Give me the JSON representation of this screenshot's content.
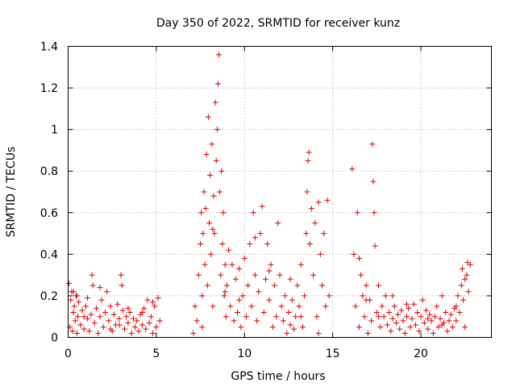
{
  "chart_data": {
    "type": "scatter",
    "title": "Day 350 of 2022, SRMTID for receiver kunz",
    "xlabel": "GPS time / hours",
    "ylabel": "SRMTID / TECUs",
    "xlim": [
      0,
      24
    ],
    "ylim": [
      0,
      1.4
    ],
    "x_ticks": [
      0,
      5,
      10,
      15,
      20
    ],
    "x_tick_labels": [
      "0",
      "5",
      "10",
      "15",
      "20"
    ],
    "y_ticks": [
      0,
      0.2,
      0.4,
      0.6,
      0.8,
      1,
      1.2,
      1.4
    ],
    "y_tick_labels": [
      "0",
      "0.2",
      "0.4",
      "0.6",
      "0.8",
      "1",
      "1.2",
      "1.4"
    ],
    "grid": true,
    "marker": "plus",
    "marker_color": "#e00000",
    "series": [
      {
        "name": "SRMTID",
        "points": [
          [
            0.05,
            0.26
          ],
          [
            0.1,
            0.05
          ],
          [
            0.15,
            0.18
          ],
          [
            0.2,
            0.22
          ],
          [
            0.25,
            0.03
          ],
          [
            0.3,
            0.12
          ],
          [
            0.35,
            0.15
          ],
          [
            0.4,
            0.08
          ],
          [
            0.45,
            0.2
          ],
          [
            0.5,
            0.02
          ],
          [
            0.55,
            0.1
          ],
          [
            0.6,
            0.17
          ],
          [
            0.7,
            0.06
          ],
          [
            0.8,
            0.13
          ],
          [
            0.9,
            0.04
          ],
          [
            1.0,
            0.15
          ],
          [
            1.1,
            0.09
          ],
          [
            1.2,
            0.03
          ],
          [
            1.3,
            0.11
          ],
          [
            1.35,
            0.3
          ],
          [
            1.4,
            0.25
          ],
          [
            1.5,
            0.07
          ],
          [
            1.6,
            0.14
          ],
          [
            1.7,
            0.02
          ],
          [
            1.8,
            0.1
          ],
          [
            1.9,
            0.18
          ],
          [
            2.0,
            0.05
          ],
          [
            2.1,
            0.12
          ],
          [
            2.2,
            0.22
          ],
          [
            2.3,
            0.08
          ],
          [
            2.4,
            0.15
          ],
          [
            2.5,
            0.03
          ],
          [
            2.6,
            0.11
          ],
          [
            2.7,
            0.06
          ],
          [
            2.8,
            0.16
          ],
          [
            2.9,
            0.09
          ],
          [
            3.0,
            0.3
          ],
          [
            3.05,
            0.25
          ],
          [
            3.1,
            0.13
          ],
          [
            3.2,
            0.04
          ],
          [
            3.3,
            0.1
          ],
          [
            3.4,
            0.07
          ],
          [
            3.5,
            0.12
          ],
          [
            3.6,
            0.02
          ],
          [
            3.7,
            0.09
          ],
          [
            3.8,
            0.05
          ],
          [
            3.9,
            0.08
          ],
          [
            4.0,
            0.03
          ],
          [
            4.1,
            0.11
          ],
          [
            4.2,
            0.06
          ],
          [
            4.3,
            0.14
          ],
          [
            4.4,
            0.04
          ],
          [
            4.5,
            0.18
          ],
          [
            4.6,
            0.07
          ],
          [
            4.7,
            0.1
          ],
          [
            4.8,
            0.02
          ],
          [
            4.9,
            0.15
          ],
          [
            5.0,
            0.05
          ],
          [
            5.1,
            0.19
          ],
          [
            5.2,
            0.08
          ],
          [
            0.5,
            0.2
          ],
          [
            0.9,
            0.1
          ],
          [
            1.8,
            0.24
          ],
          [
            2.4,
            0.04
          ],
          [
            3.4,
            0.14
          ],
          [
            4.2,
            0.12
          ],
          [
            4.8,
            0.17
          ],
          [
            2.9,
            0.06
          ],
          [
            0.3,
            0.22
          ],
          [
            1.1,
            0.19
          ],
          [
            7.1,
            0.02
          ],
          [
            7.2,
            0.15
          ],
          [
            7.3,
            0.08
          ],
          [
            7.4,
            0.3
          ],
          [
            7.5,
            0.45
          ],
          [
            7.55,
            0.6
          ],
          [
            7.6,
            0.2
          ],
          [
            7.65,
            0.5
          ],
          [
            7.7,
            0.7
          ],
          [
            7.75,
            0.35
          ],
          [
            7.8,
            0.62
          ],
          [
            7.85,
            0.88
          ],
          [
            7.9,
            0.25
          ],
          [
            7.95,
            1.06
          ],
          [
            8.0,
            0.55
          ],
          [
            8.05,
            0.78
          ],
          [
            8.1,
            0.4
          ],
          [
            8.15,
            0.93
          ],
          [
            8.2,
            0.15
          ],
          [
            8.25,
            0.68
          ],
          [
            8.3,
            0.5
          ],
          [
            8.35,
            1.13
          ],
          [
            8.4,
            0.85
          ],
          [
            8.45,
            1.0
          ],
          [
            8.5,
            1.22
          ],
          [
            8.55,
            1.36
          ],
          [
            8.6,
            0.7
          ],
          [
            8.65,
            0.3
          ],
          [
            8.7,
            0.8
          ],
          [
            8.75,
            0.45
          ],
          [
            8.8,
            0.6
          ],
          [
            8.85,
            0.2
          ],
          [
            8.9,
            0.35
          ],
          [
            8.95,
            0.1
          ],
          [
            9.0,
            0.25
          ],
          [
            9.1,
            0.42
          ],
          [
            9.2,
            0.15
          ],
          [
            9.3,
            0.35
          ],
          [
            9.4,
            0.08
          ],
          [
            9.5,
            0.28
          ],
          [
            9.6,
            0.12
          ],
          [
            9.7,
            0.33
          ],
          [
            9.8,
            0.05
          ],
          [
            9.9,
            0.2
          ],
          [
            10.0,
            0.38
          ],
          [
            10.1,
            0.1
          ],
          [
            10.2,
            0.25
          ],
          [
            10.3,
            0.45
          ],
          [
            10.4,
            0.15
          ],
          [
            10.5,
            0.6
          ],
          [
            10.6,
            0.3
          ],
          [
            10.7,
            0.08
          ],
          [
            10.8,
            0.22
          ],
          [
            10.9,
            0.5
          ],
          [
            11.0,
            0.63
          ],
          [
            11.1,
            0.12
          ],
          [
            11.2,
            0.28
          ],
          [
            11.3,
            0.45
          ],
          [
            11.4,
            0.18
          ],
          [
            11.5,
            0.35
          ],
          [
            11.6,
            0.05
          ],
          [
            11.7,
            0.25
          ],
          [
            11.8,
            0.1
          ],
          [
            11.9,
            0.55
          ],
          [
            12.0,
            0.3
          ],
          [
            12.1,
            0.15
          ],
          [
            12.2,
            0.08
          ],
          [
            12.3,
            0.2
          ],
          [
            12.4,
            0.02
          ],
          [
            12.5,
            0.12
          ],
          [
            12.6,
            0.06
          ],
          [
            12.7,
            0.18
          ],
          [
            12.8,
            0.04
          ],
          [
            12.9,
            0.1
          ],
          [
            13.0,
            0.25
          ],
          [
            13.1,
            0.15
          ],
          [
            13.2,
            0.35
          ],
          [
            13.3,
            0.05
          ],
          [
            13.4,
            0.2
          ],
          [
            13.5,
            0.5
          ],
          [
            13.55,
            0.7
          ],
          [
            13.6,
            0.85
          ],
          [
            13.65,
            0.89
          ],
          [
            13.7,
            0.45
          ],
          [
            13.8,
            0.62
          ],
          [
            13.9,
            0.3
          ],
          [
            14.0,
            0.55
          ],
          [
            14.1,
            0.1
          ],
          [
            14.2,
            0.65
          ],
          [
            14.3,
            0.4
          ],
          [
            14.4,
            0.25
          ],
          [
            14.5,
            0.5
          ],
          [
            14.6,
            0.15
          ],
          [
            14.7,
            0.66
          ],
          [
            14.8,
            0.2
          ],
          [
            7.6,
            0.05
          ],
          [
            8.2,
            0.52
          ],
          [
            8.9,
            0.22
          ],
          [
            9.7,
            0.18
          ],
          [
            10.6,
            0.48
          ],
          [
            11.4,
            0.32
          ],
          [
            12.6,
            0.28
          ],
          [
            13.2,
            0.1
          ],
          [
            14.2,
            0.02
          ],
          [
            16.1,
            0.81
          ],
          [
            16.2,
            0.4
          ],
          [
            16.3,
            0.15
          ],
          [
            16.4,
            0.6
          ],
          [
            16.5,
            0.05
          ],
          [
            16.6,
            0.3
          ],
          [
            16.7,
            0.2
          ],
          [
            16.8,
            0.1
          ],
          [
            16.9,
            0.25
          ],
          [
            17.0,
            0.02
          ],
          [
            17.1,
            0.18
          ],
          [
            17.2,
            0.08
          ],
          [
            17.25,
            0.93
          ],
          [
            17.3,
            0.75
          ],
          [
            17.35,
            0.6
          ],
          [
            17.4,
            0.44
          ],
          [
            17.5,
            0.12
          ],
          [
            17.6,
            0.25
          ],
          [
            17.7,
            0.05
          ],
          [
            17.8,
            0.15
          ],
          [
            17.9,
            0.1
          ],
          [
            18.0,
            0.2
          ],
          [
            18.1,
            0.06
          ],
          [
            18.2,
            0.12
          ],
          [
            18.3,
            0.03
          ],
          [
            18.4,
            0.09
          ],
          [
            18.5,
            0.15
          ],
          [
            18.6,
            0.07
          ],
          [
            18.7,
            0.11
          ],
          [
            18.8,
            0.04
          ],
          [
            18.9,
            0.13
          ],
          [
            19.0,
            0.08
          ],
          [
            19.1,
            0.02
          ],
          [
            19.2,
            0.1
          ],
          [
            19.3,
            0.14
          ],
          [
            19.4,
            0.05
          ],
          [
            19.5,
            0.09
          ],
          [
            19.6,
            0.16
          ],
          [
            19.7,
            0.06
          ],
          [
            19.8,
            0.12
          ],
          [
            19.9,
            0.03
          ],
          [
            20.0,
            0.1
          ],
          [
            20.1,
            0.18
          ],
          [
            20.2,
            0.07
          ],
          [
            20.3,
            0.13
          ],
          [
            20.4,
            0.04
          ],
          [
            20.5,
            0.11
          ],
          [
            20.6,
            0.08
          ],
          [
            20.7,
            0.02
          ],
          [
            20.8,
            0.1
          ],
          [
            20.9,
            0.15
          ],
          [
            21.0,
            0.05
          ],
          [
            21.1,
            0.09
          ],
          [
            21.2,
            0.2
          ],
          [
            21.3,
            0.07
          ],
          [
            21.4,
            0.12
          ],
          [
            21.5,
            0.03
          ],
          [
            21.6,
            0.08
          ],
          [
            21.7,
            0.11
          ],
          [
            21.8,
            0.05
          ],
          [
            21.9,
            0.14
          ],
          [
            22.0,
            0.08
          ],
          [
            22.1,
            0.2
          ],
          [
            22.2,
            0.12
          ],
          [
            22.3,
            0.25
          ],
          [
            22.35,
            0.33
          ],
          [
            22.4,
            0.18
          ],
          [
            22.5,
            0.28
          ],
          [
            22.6,
            0.3
          ],
          [
            22.65,
            0.36
          ],
          [
            22.7,
            0.22
          ],
          [
            22.8,
            0.35
          ],
          [
            16.5,
            0.38
          ],
          [
            16.9,
            0.18
          ],
          [
            17.6,
            0.1
          ],
          [
            18.4,
            0.2
          ],
          [
            19.2,
            0.16
          ],
          [
            20.4,
            0.09
          ],
          [
            21.2,
            0.06
          ],
          [
            22.0,
            0.15
          ],
          [
            22.5,
            0.05
          ]
        ]
      }
    ]
  }
}
